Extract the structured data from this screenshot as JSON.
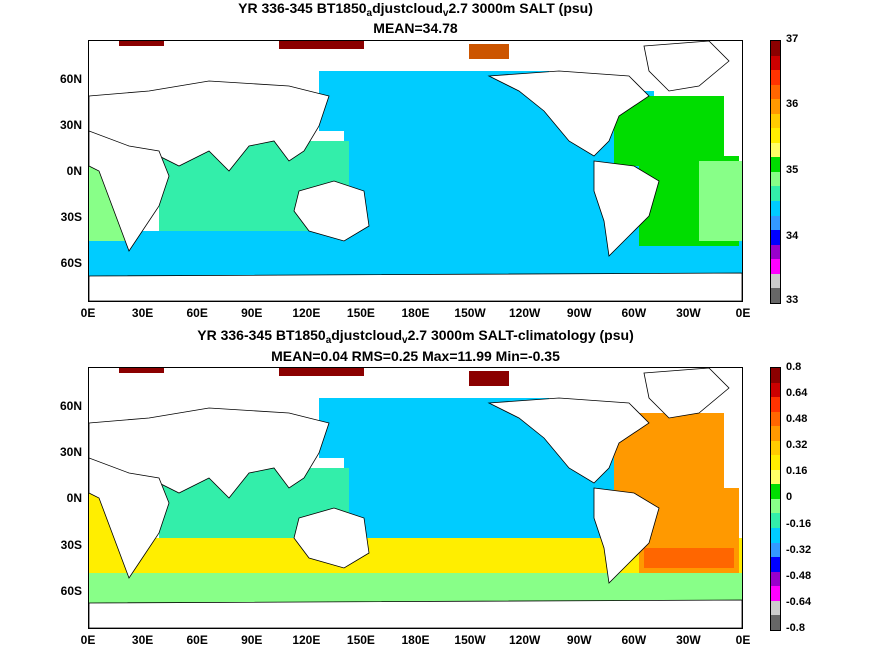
{
  "chart_data": [
    {
      "type": "heatmap",
      "title_parts": [
        "YR 336-345 BT1850",
        "a",
        "djustcloud",
        "v",
        "2.7 3000m SALT (psu)"
      ],
      "subtitle": "MEAN=34.78",
      "ylabels": [
        "60N",
        "30N",
        "0N",
        "30S",
        "60S"
      ],
      "xlabels": [
        "0E",
        "30E",
        "60E",
        "90E",
        "120E",
        "150E",
        "180E",
        "150W",
        "120W",
        "90W",
        "60W",
        "30W",
        "0E"
      ],
      "colorbar_ticks": [
        "37",
        "36",
        "35",
        "34",
        "33"
      ],
      "colorbar_colors": [
        "#8b0000",
        "#cc0000",
        "#ff3300",
        "#ff6600",
        "#ff9900",
        "#ffcc00",
        "#ffee00",
        "#ffff66",
        "#00dd00",
        "#88ff88",
        "#33eeaa",
        "#00ccff",
        "#3399ff",
        "#0000ff",
        "#9900cc",
        "#ff00ff",
        "#cccccc",
        "#666666"
      ],
      "colors": {
        "pacific": "#00ccff",
        "indian": "#33eeaa",
        "southern": "#00ccff",
        "atlantic": "#00dd00",
        "patch": "#88ff88",
        "arctic": "#8b0000",
        "nice": "#cc5500"
      }
    },
    {
      "type": "heatmap",
      "title_parts": [
        "YR 336-345 BT1850",
        "a",
        "djustcloud",
        "v",
        "2.7 3000m SALT-climatology (psu)"
      ],
      "subtitle": "MEAN=0.04   RMS=0.25   Max=11.99   Min=-0.35",
      "ylabels": [
        "60N",
        "30N",
        "0N",
        "30S",
        "60S"
      ],
      "xlabels": [
        "0E",
        "30E",
        "60E",
        "90E",
        "120E",
        "150E",
        "180E",
        "150W",
        "120W",
        "90W",
        "60W",
        "30W",
        "0E"
      ],
      "colorbar_ticks": [
        "0.8",
        "0.64",
        "0.48",
        "0.32",
        "0.16",
        "0",
        "-0.16",
        "-0.32",
        "-0.48",
        "-0.64",
        "-0.8"
      ],
      "colorbar_colors": [
        "#8b0000",
        "#cc0000",
        "#ff3300",
        "#ff6600",
        "#ff9900",
        "#ffcc00",
        "#ffee00",
        "#ffff66",
        "#00dd00",
        "#88ff88",
        "#33eeaa",
        "#00ccff",
        "#3399ff",
        "#0000ff",
        "#9900cc",
        "#ff00ff",
        "#cccccc",
        "#666666"
      ],
      "colors": {
        "pacific": "#00ccff",
        "indian": "#33eeaa",
        "southern": "#ffee00",
        "atlantic": "#ff9900",
        "patch": "#88ff88",
        "arctic": "#8b0000",
        "nice": "#ff6600"
      }
    }
  ]
}
